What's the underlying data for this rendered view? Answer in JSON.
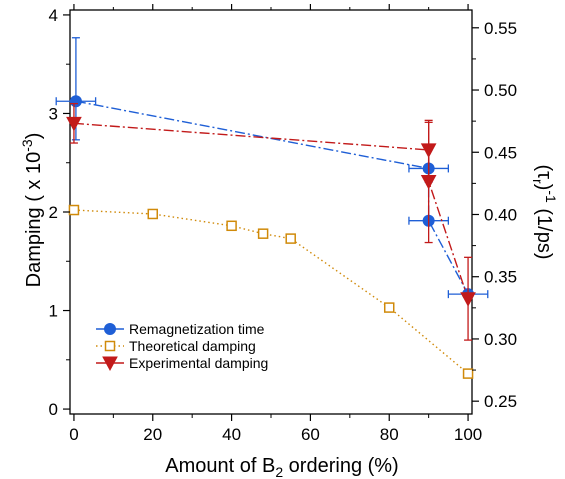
{
  "chart_data": {
    "type": "line",
    "x_axis": {
      "label_main": "Amount of B",
      "label_sub": "2",
      "label_tail": " ordering (%)",
      "ticks": [
        0,
        20,
        40,
        60,
        80,
        100
      ],
      "range": [
        -1,
        101
      ],
      "minor_step": 10
    },
    "y_left": {
      "label_main": "Damping ( x 10",
      "label_sup": "-3",
      "label_tail": ")",
      "ticks": [
        0,
        1,
        2,
        3,
        4
      ],
      "range": [
        -0.05,
        4.05
      ],
      "minor_step": 0.5
    },
    "y_right": {
      "label_main": "(τ",
      "label_sub": "r",
      "label_mid": ")",
      "label_sup": "-1",
      "label_tail": " (1/ps)",
      "ticks": [
        "0.25",
        "0.30",
        "0.35",
        "0.40",
        "0.45",
        "0.50",
        "0.55"
      ],
      "range": [
        0.2397,
        0.5643
      ],
      "minor_step": 0.025
    },
    "legend": {
      "position": "left-lower",
      "entries": [
        {
          "series": "remag",
          "label": "Remagnetization time"
        },
        {
          "series": "theory",
          "label": "Theoretical damping"
        },
        {
          "series": "expt",
          "label": "Experimental damping"
        }
      ]
    },
    "series": [
      {
        "key": "remag",
        "name": "Remagnetization time",
        "axis": "right",
        "color": "#1f5fd6",
        "marker": "circle",
        "line": "dash-dot",
        "points": [
          {
            "x": 0.5,
            "y": 0.491,
            "yerr_low": 0.031,
            "yerr_high": 0.051,
            "xerr": 5
          },
          {
            "x": 90,
            "y": 0.437,
            "yerr_low": 0.011,
            "yerr_high": 0.015,
            "xerr": 5
          },
          {
            "x": 90,
            "y": 0.395,
            "yerr_low": 0.0,
            "yerr_high": 0.0,
            "xerr": 5
          },
          {
            "x": 100,
            "y": 0.336,
            "yerr_low": 0.0,
            "yerr_high": 0.0,
            "xerr": 5
          }
        ]
      },
      {
        "key": "theory",
        "name": "Theoretical damping",
        "axis": "left",
        "color": "#d08a0a",
        "marker": "open-square",
        "line": "dotted",
        "points": [
          {
            "x": 0,
            "y": 2.02
          },
          {
            "x": 20,
            "y": 1.98
          },
          {
            "x": 40,
            "y": 1.86
          },
          {
            "x": 48,
            "y": 1.78
          },
          {
            "x": 55,
            "y": 1.73
          },
          {
            "x": 80,
            "y": 1.03
          },
          {
            "x": 100,
            "y": 0.36
          }
        ]
      },
      {
        "key": "expt",
        "name": "Experimental damping",
        "axis": "left",
        "color": "#c21a1a",
        "marker": "triangle-down",
        "line": "dash-dot",
        "points": [
          {
            "x": 0,
            "y": 2.9,
            "yerr_low": 0.2,
            "yerr_high": 0.2
          },
          {
            "x": 90,
            "y": 2.63,
            "yerr_low": 0.3,
            "yerr_high": 0.28
          },
          {
            "x": 90,
            "y": 2.31,
            "yerr_low": 0.62,
            "yerr_high": 0.62
          },
          {
            "x": 100,
            "y": 1.12,
            "yerr_low": 0.42,
            "yerr_high": 0.42
          }
        ]
      }
    ]
  }
}
